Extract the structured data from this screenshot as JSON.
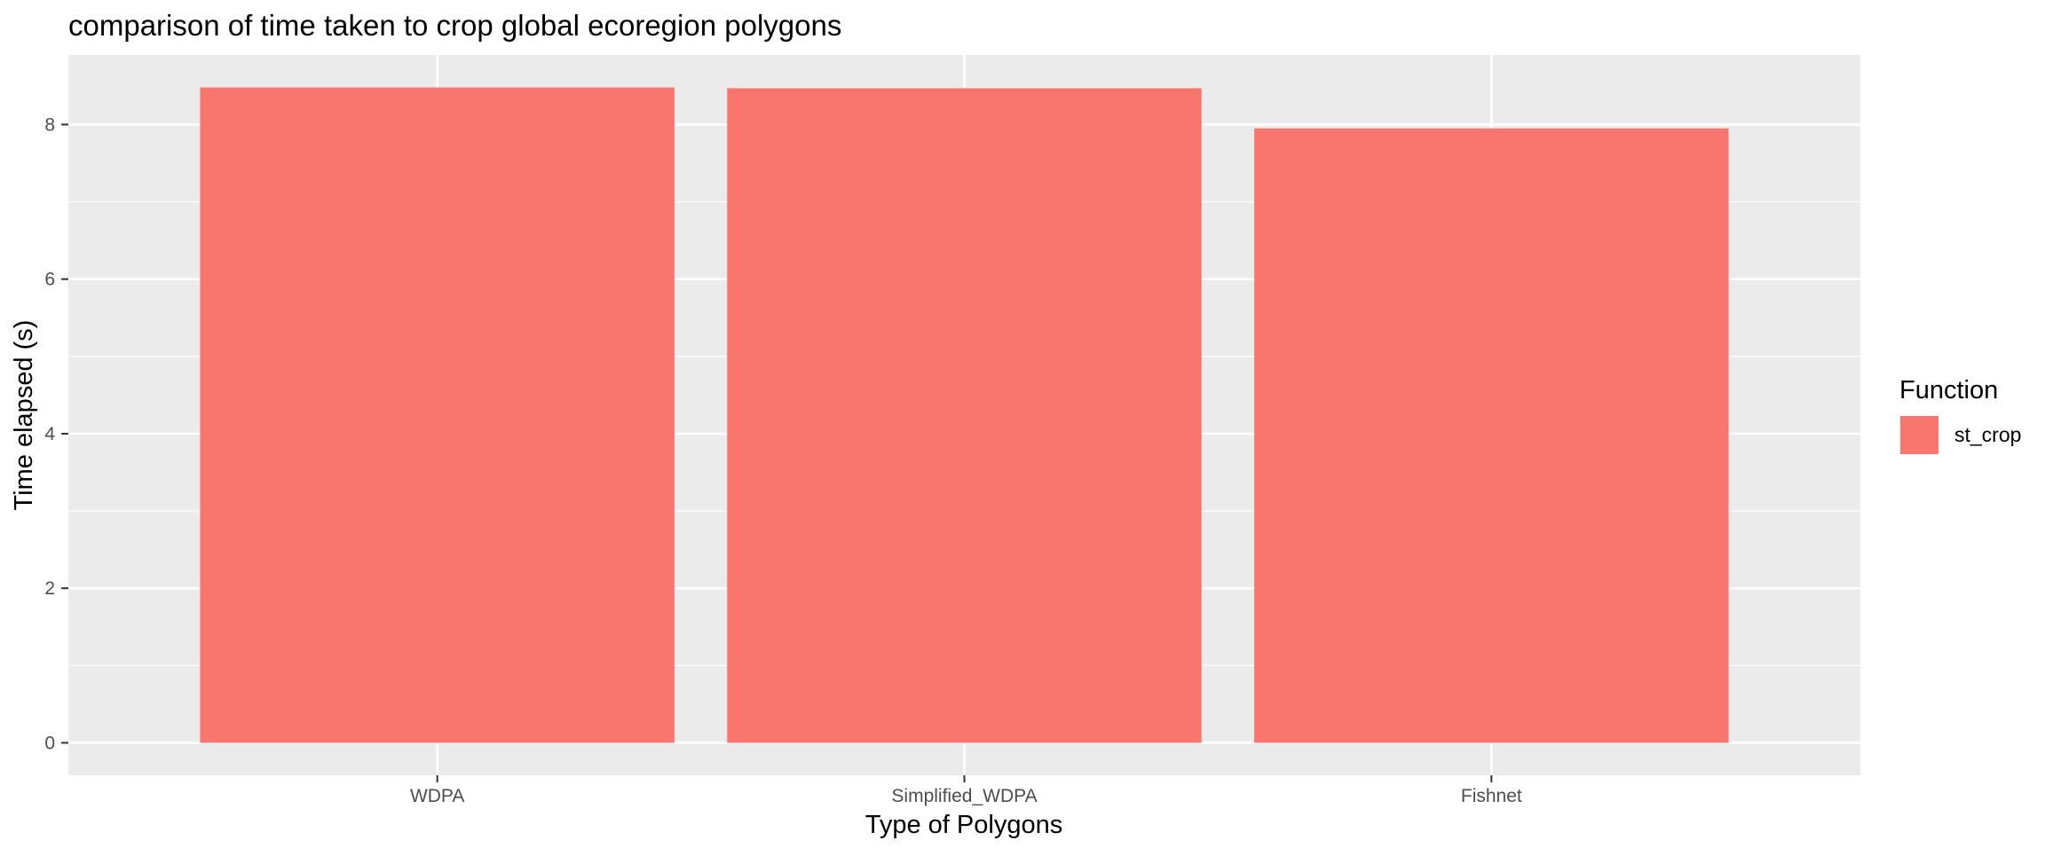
{
  "chart_data": {
    "type": "bar",
    "title": "comparison of time taken to crop global ecoregion polygons",
    "xlabel": "Type of Polygons",
    "ylabel": "Time elapsed (s)",
    "categories": [
      "WDPA",
      "Simplified_WDPA",
      "Fishnet"
    ],
    "series": [
      {
        "name": "st_crop",
        "values": [
          8.48,
          8.47,
          7.95
        ],
        "color": "#F8766D"
      }
    ],
    "ylim": [
      -0.42,
      8.9
    ],
    "yticks": [
      0,
      2,
      4,
      6,
      8
    ],
    "ytick_labels": [
      "0",
      "2",
      "4",
      "6",
      "8"
    ],
    "grid": true,
    "legend": {
      "title": "Function",
      "position": "right"
    },
    "colors": {
      "panel_background": "#EBEBEB",
      "grid_major": "#FFFFFF",
      "tick_label": "#4D4D4D",
      "tick_mark": "#333333"
    }
  }
}
